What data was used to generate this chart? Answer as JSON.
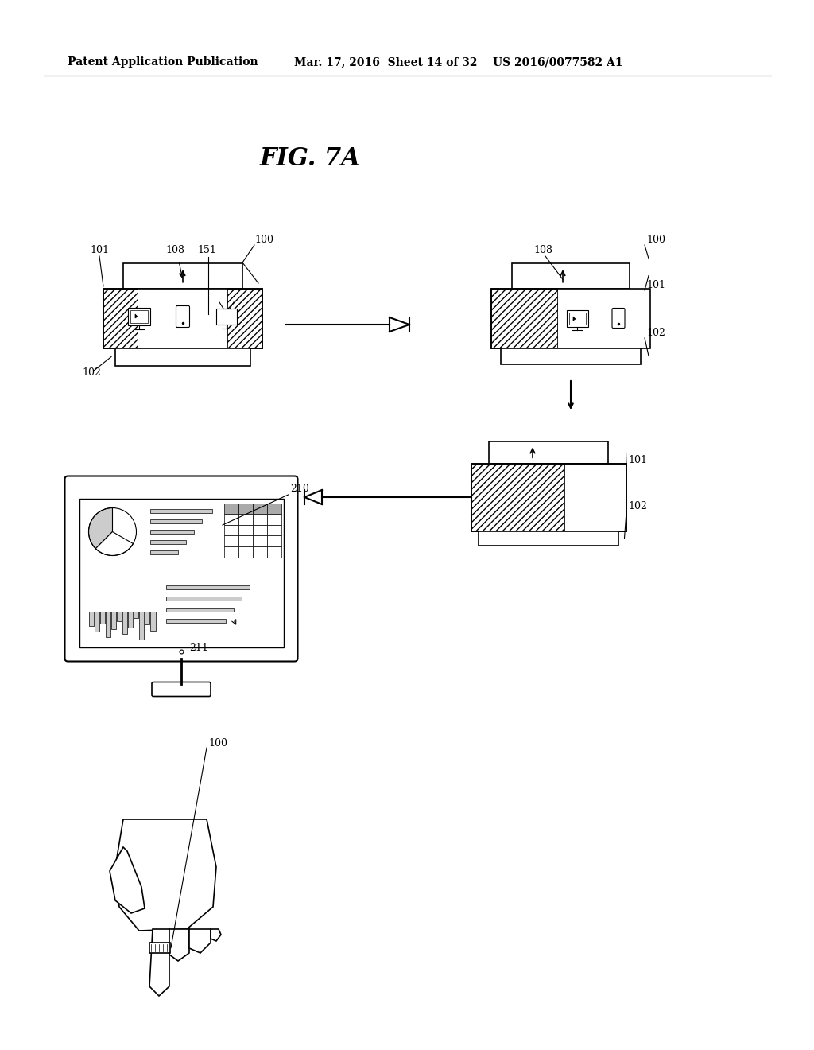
{
  "bg_color": "#ffffff",
  "header_left": "Patent Application Publication",
  "header_mid": "Mar. 17, 2016  Sheet 14 of 32",
  "header_right": "US 2016/0077582 A1",
  "fig_title": "FIG. 7A",
  "hatch_pattern": "////"
}
